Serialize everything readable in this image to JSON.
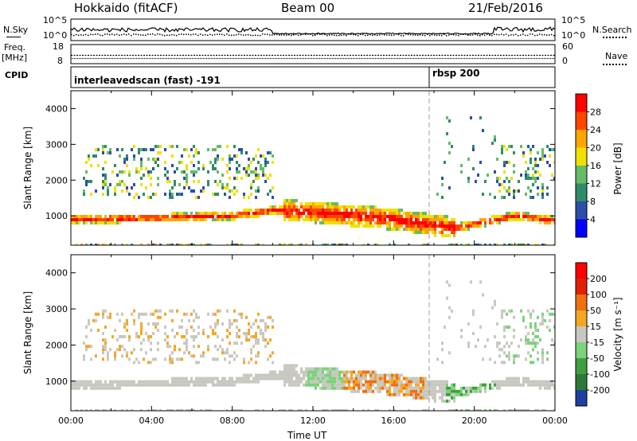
{
  "header": {
    "station": "Hokkaido (fitACF)",
    "beam": "Beam 00",
    "date": "21/Feb/2016"
  },
  "summary": {
    "nsky_label": "N.Sky",
    "nsearch_label": "N.Search",
    "nsky_ticks": [
      "10^5",
      "10^0"
    ],
    "nsearch_ticks": [
      "10^5",
      "10^0"
    ],
    "freq_label_1": "Freq.",
    "freq_label_2": "[MHz]",
    "freq_ticks": [
      "18",
      "8"
    ],
    "nave_label": "Nave",
    "nave_ticks": [
      "60",
      "0"
    ],
    "cpid_label": "CPID",
    "cpid_segments": [
      {
        "start_ut": "00:00",
        "label": "interleavedscan (fast) -191"
      },
      {
        "start_ut": "18:00",
        "label": "rbsp 200"
      }
    ]
  },
  "chart_data": [
    {
      "type": "heatmap",
      "panel": "power",
      "xlabel": "",
      "ylabel": "Slant Range [km]",
      "x_range_hours": [
        0,
        24
      ],
      "y_range_km": [
        180,
        4500
      ],
      "yticks": [
        "4000",
        "3000",
        "2000",
        "1000"
      ],
      "colorbar_label": "Power [dB]",
      "colorbar_ticks": [
        "28",
        "24",
        "20",
        "16",
        "12",
        "8",
        "4"
      ],
      "colorbar_colors": [
        "#0000ff",
        "#2a4fa8",
        "#2f8c6a",
        "#66bb66",
        "#f0e000",
        "#ffa500",
        "#ff4500",
        "#ff0000"
      ],
      "echo_band_km": [
        {
          "ut_hours": 0,
          "range_km": 950
        },
        {
          "ut_hours": 4,
          "range_km": 980
        },
        {
          "ut_hours": 8,
          "range_km": 1050
        },
        {
          "ut_hours": 10,
          "range_km": 1200
        },
        {
          "ut_hours": 12,
          "range_km": 1150
        },
        {
          "ut_hours": 16,
          "range_km": 950
        },
        {
          "ut_hours": 19,
          "range_km": 700
        },
        {
          "ut_hours": 22,
          "range_km": 1050
        },
        {
          "ut_hours": 24,
          "range_km": 900
        }
      ]
    },
    {
      "type": "heatmap",
      "panel": "velocity",
      "xlabel": "Time UT",
      "ylabel": "Slant Range [km]",
      "x_range_hours": [
        0,
        24
      ],
      "y_range_km": [
        180,
        4500
      ],
      "xticks": [
        "00:00",
        "04:00",
        "08:00",
        "12:00",
        "16:00",
        "20:00",
        "00:00"
      ],
      "yticks": [
        "4000",
        "3000",
        "2000",
        "1000"
      ],
      "colorbar_label": "Velocity [m s⁻¹]",
      "colorbar_ticks": [
        "200",
        "100",
        "50",
        "15",
        "-15",
        "-50",
        "-100",
        "-200"
      ],
      "colorbar_colors": [
        "#1c3fa0",
        "#2c7a3a",
        "#3f9f3f",
        "#7bd37b",
        "#c8c8c0",
        "#f5a623",
        "#f07010",
        "#e02000",
        "#ff0000"
      ],
      "ground_scatter_color": "#c8c8c0"
    }
  ]
}
